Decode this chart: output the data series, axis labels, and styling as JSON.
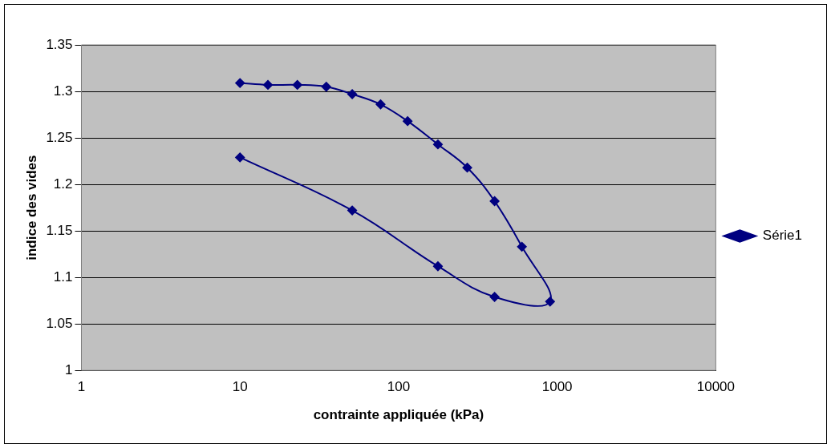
{
  "chart_data": {
    "type": "line",
    "xlabel": "contrainte appliquée (kPa)",
    "ylabel": "indice des vides",
    "x": [
      10,
      15,
      23,
      35,
      51,
      77,
      114,
      177,
      271,
      403,
      599,
      902,
      403,
      177,
      51,
      10
    ],
    "series": [
      {
        "name": "Série1",
        "color": "#000080",
        "values": [
          1.309,
          1.307,
          1.307,
          1.305,
          1.297,
          1.286,
          1.268,
          1.243,
          1.218,
          1.182,
          1.133,
          1.074,
          1.079,
          1.112,
          1.172,
          1.229
        ]
      }
    ],
    "log": "x",
    "xlim": [
      1,
      10000
    ],
    "xticks": [
      1,
      10,
      100,
      1000,
      10000
    ],
    "ylim": [
      1,
      1.35
    ],
    "yticks": [
      1,
      1.05,
      1.1,
      1.15,
      1.2,
      1.25,
      1.3,
      1.35
    ],
    "grid": "y",
    "legend": "right",
    "marker": "diamond",
    "line_style": "solid"
  }
}
